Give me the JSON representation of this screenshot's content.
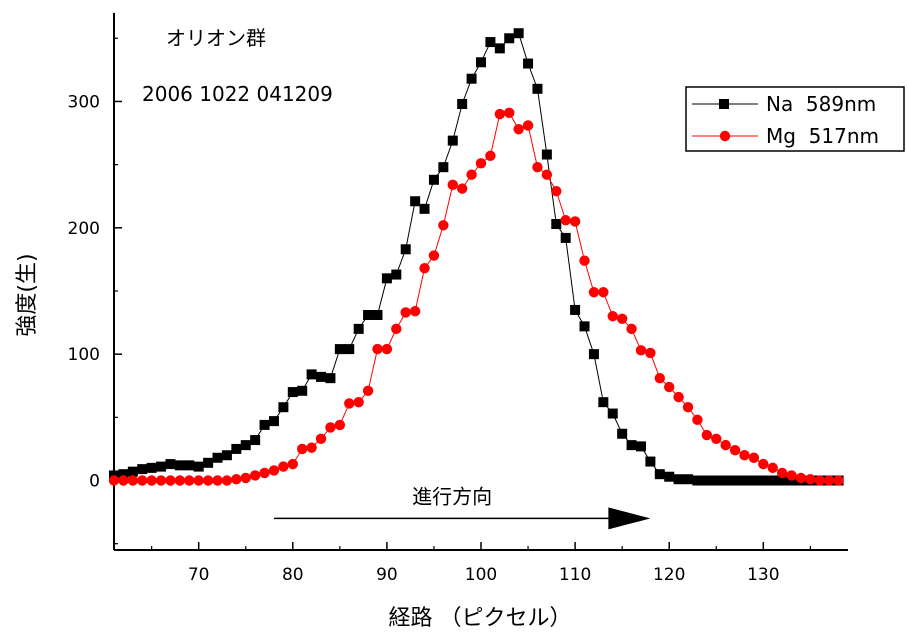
{
  "chart_data": {
    "type": "scatter",
    "title": "オリオン群",
    "subtitle": "2006 1022 041209",
    "xlabel": "経路 （ピクセル）",
    "ylabel": "強度(生)",
    "xlim": [
      61,
      139
    ],
    "ylim": [
      -55,
      370
    ],
    "x_ticks": [
      70,
      80,
      90,
      100,
      110,
      120,
      130
    ],
    "y_ticks": [
      0,
      100,
      200,
      300
    ],
    "legend_position": "top-right",
    "annotation": {
      "text": "進行方向",
      "arrow_from_x": 78,
      "arrow_to_x": 118,
      "arrow_y": -30
    },
    "series": [
      {
        "name": "Na  589nm",
        "color": "#000000",
        "marker": "square",
        "x": [
          61,
          62,
          63,
          64,
          65,
          66,
          67,
          68,
          69,
          70,
          71,
          72,
          73,
          74,
          75,
          76,
          77,
          78,
          79,
          80,
          81,
          82,
          83,
          84,
          85,
          86,
          87,
          88,
          89,
          90,
          91,
          92,
          93,
          94,
          95,
          96,
          97,
          98,
          99,
          100,
          101,
          102,
          103,
          104,
          105,
          106,
          107,
          108,
          109,
          110,
          111,
          112,
          113,
          114,
          115,
          116,
          117,
          118,
          119,
          120,
          121,
          122,
          123,
          124,
          125,
          126,
          127,
          128,
          129,
          130,
          131,
          132,
          133,
          134,
          135,
          136,
          137,
          138
        ],
        "values": [
          4,
          5,
          7,
          9,
          10,
          11,
          13,
          12,
          12,
          11,
          14,
          18,
          20,
          25,
          28,
          32,
          44,
          47,
          58,
          70,
          71,
          84,
          82,
          81,
          104,
          104,
          120,
          131,
          131,
          160,
          163,
          183,
          221,
          215,
          238,
          248,
          269,
          298,
          318,
          331,
          347,
          342,
          350,
          354,
          330,
          310,
          258,
          203,
          192,
          135,
          122,
          100,
          62,
          53,
          37,
          28,
          27,
          15,
          5,
          3,
          1,
          1,
          0,
          0,
          0,
          0,
          0,
          0,
          0,
          0,
          0,
          0,
          0,
          0,
          0,
          0,
          0,
          0
        ]
      },
      {
        "name": "Mg  517nm",
        "color": "#ff0000",
        "marker": "circle",
        "x": [
          61,
          62,
          63,
          64,
          65,
          66,
          67,
          68,
          69,
          70,
          71,
          72,
          73,
          74,
          75,
          76,
          77,
          78,
          79,
          80,
          81,
          82,
          83,
          84,
          85,
          86,
          87,
          88,
          89,
          90,
          91,
          92,
          93,
          94,
          95,
          96,
          97,
          98,
          99,
          100,
          101,
          102,
          103,
          104,
          105,
          106,
          107,
          108,
          109,
          110,
          111,
          112,
          113,
          114,
          115,
          116,
          117,
          118,
          119,
          120,
          121,
          122,
          123,
          124,
          125,
          126,
          127,
          128,
          129,
          130,
          131,
          132,
          133,
          134,
          135,
          136,
          137,
          138
        ],
        "values": [
          0,
          0,
          0,
          0,
          0,
          0,
          0,
          0,
          0,
          0,
          0,
          0,
          0,
          1,
          2,
          4,
          6,
          8,
          11,
          13,
          25,
          26,
          33,
          42,
          44,
          61,
          62,
          71,
          104,
          104,
          120,
          133,
          134,
          168,
          178,
          202,
          234,
          231,
          242,
          251,
          257,
          290,
          291,
          278,
          281,
          248,
          242,
          229,
          206,
          205,
          174,
          149,
          149,
          130,
          128,
          120,
          103,
          101,
          81,
          74,
          66,
          58,
          48,
          36,
          33,
          28,
          24,
          20,
          18,
          13,
          10,
          6,
          4,
          2,
          1,
          0,
          0,
          0
        ]
      }
    ]
  }
}
